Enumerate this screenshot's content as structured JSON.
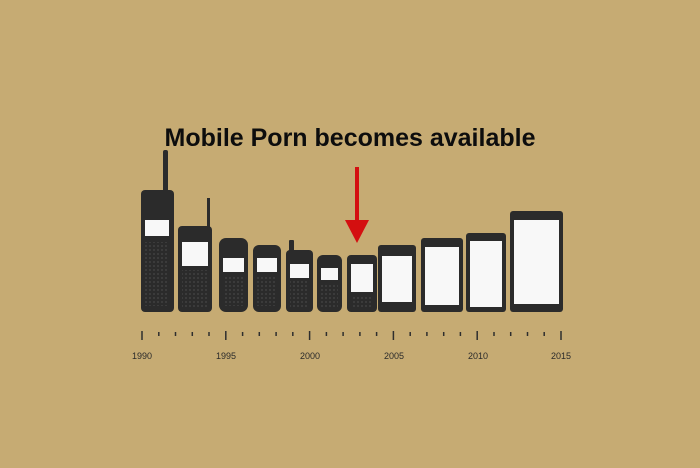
{
  "headline": "Mobile Porn becomes available",
  "timeline": {
    "labels": [
      "1990",
      "1995",
      "2000",
      "2005",
      "2010",
      "2015"
    ]
  },
  "colors": {
    "background": "#c6ab73",
    "phone": "#2b2b2b",
    "screen": "#f8f8f8",
    "arrow": "#d40f10",
    "axis": "#2e2e2e"
  },
  "icons": [
    "phone-1990-brick",
    "phone-1992",
    "phone-1994",
    "phone-1996",
    "phone-1998",
    "phone-2000",
    "phone-2002",
    "phone-2004",
    "phone-2006",
    "phone-2008",
    "phone-2011",
    "down-arrow-icon"
  ]
}
